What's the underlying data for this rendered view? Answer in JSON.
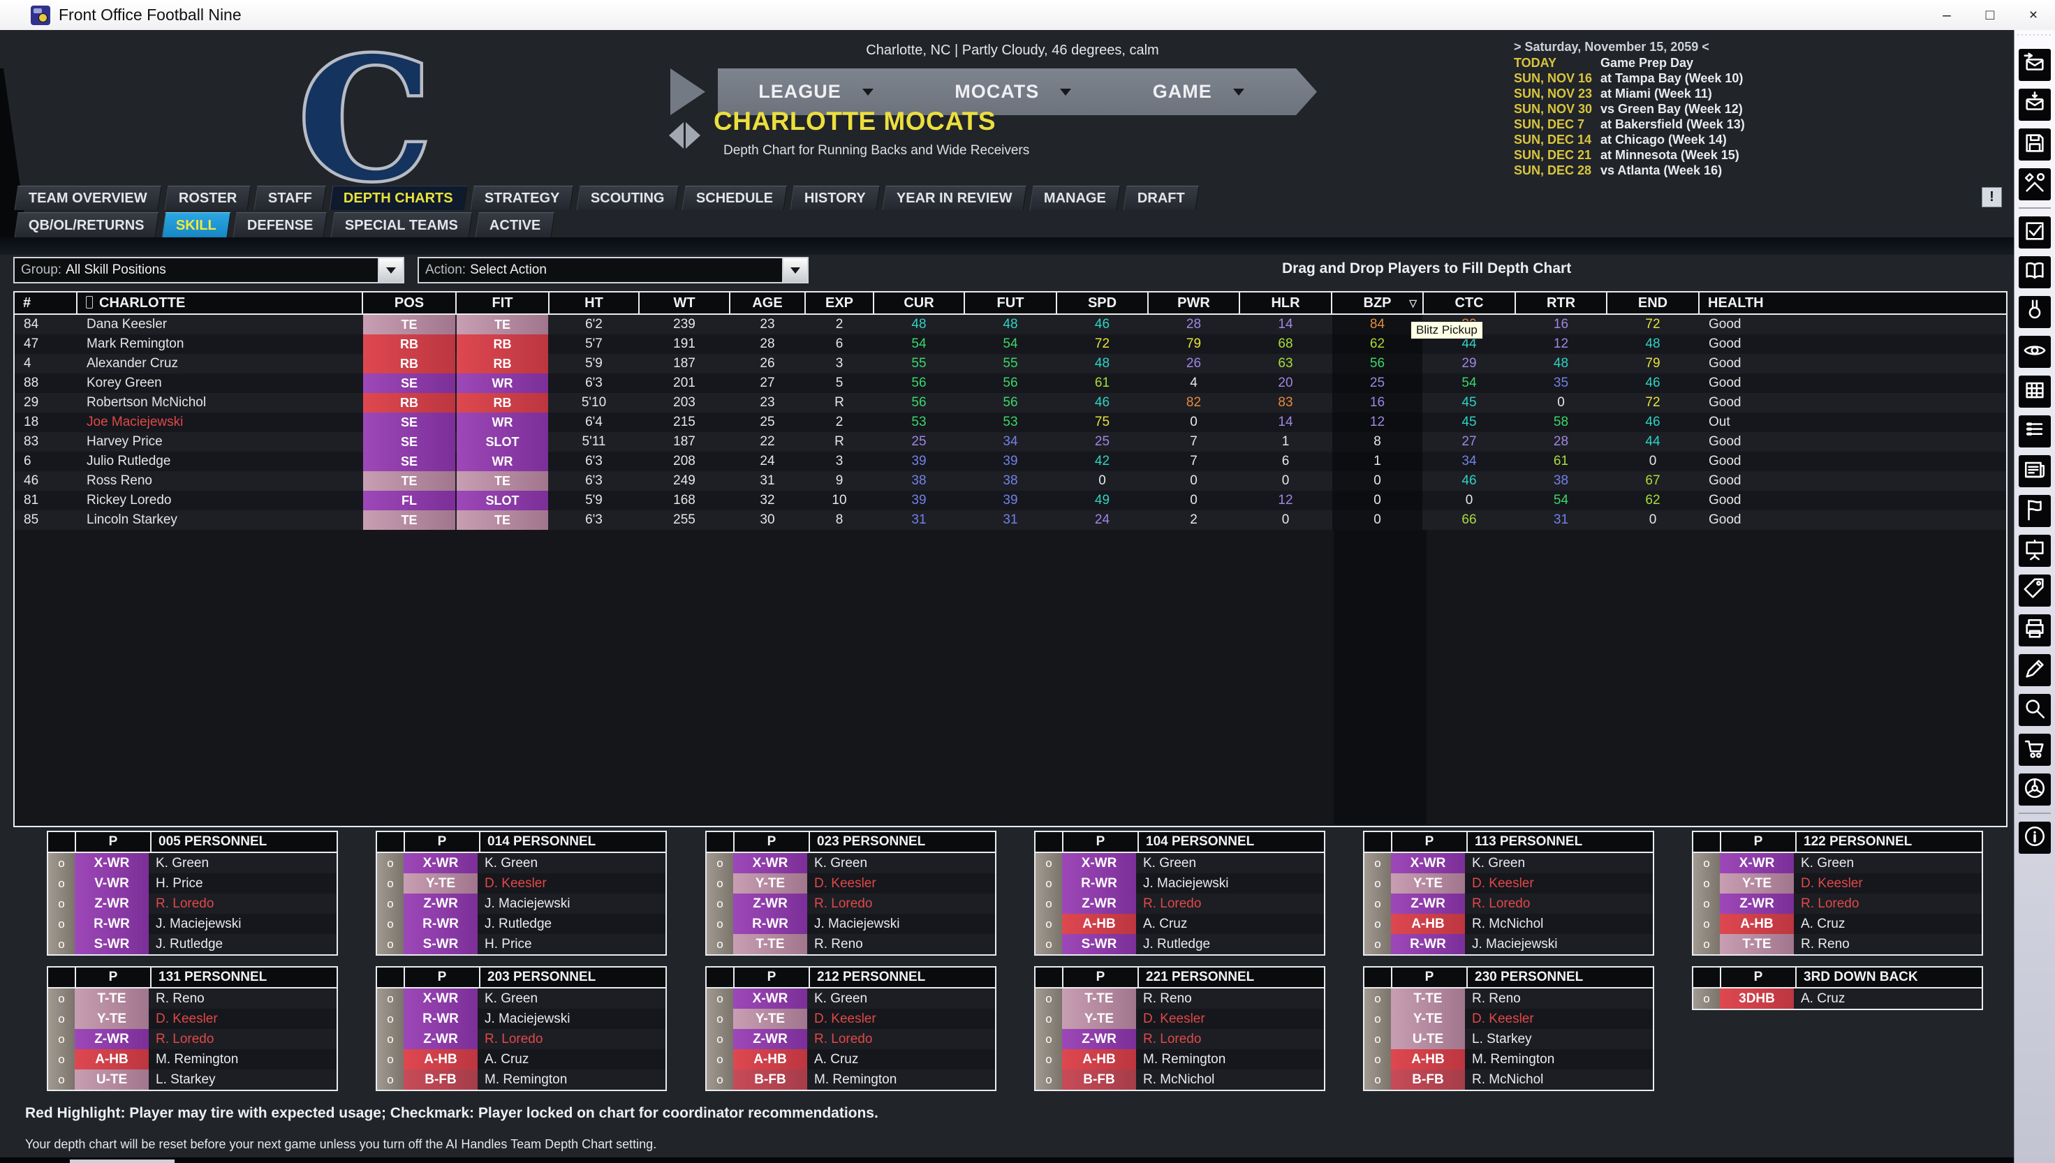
{
  "window": {
    "title": "Front Office Football Nine",
    "minimize": "–",
    "maximize": "□",
    "close": "×"
  },
  "header": {
    "logo_letter": "C",
    "weather": "Charlotte, NC | Partly Cloudy, 46 degrees, calm",
    "nav": [
      "LEAGUE",
      "MOCATS",
      "GAME"
    ],
    "team_name": "CHARLOTTE MOCATS",
    "subtitle": "Depth Chart for Running Backs and Wide Receivers",
    "schedule": {
      "date_header": "> Saturday, November 15, 2059 <",
      "rows": [
        {
          "label": "TODAY",
          "value": "Game Prep Day"
        },
        {
          "label": "SUN, NOV 16",
          "value": "at Tampa Bay (Week 10)"
        },
        {
          "label": "SUN, NOV 23",
          "value": "at Miami (Week 11)"
        },
        {
          "label": "SUN, NOV 30",
          "value": "vs Green Bay (Week 12)"
        },
        {
          "label": "SUN, DEC 7",
          "value": "at Bakersfield (Week 13)"
        },
        {
          "label": "SUN, DEC 14",
          "value": "at Chicago (Week 14)"
        },
        {
          "label": "SUN, DEC 21",
          "value": "at Minnesota (Week 15)"
        },
        {
          "label": "SUN, DEC 28",
          "value": "vs Atlanta (Week 16)"
        }
      ]
    }
  },
  "tabs": {
    "primary": [
      {
        "label": "TEAM OVERVIEW",
        "active": false
      },
      {
        "label": "ROSTER",
        "active": false
      },
      {
        "label": "STAFF",
        "active": false
      },
      {
        "label": "DEPTH CHARTS",
        "active": true
      },
      {
        "label": "STRATEGY",
        "active": false
      },
      {
        "label": "SCOUTING",
        "active": false
      },
      {
        "label": "SCHEDULE",
        "active": false
      },
      {
        "label": "HISTORY",
        "active": false
      },
      {
        "label": "YEAR IN REVIEW",
        "active": false
      },
      {
        "label": "MANAGE",
        "active": false
      },
      {
        "label": "DRAFT",
        "active": false
      }
    ],
    "secondary": [
      {
        "label": "QB/OL/RETURNS",
        "active": false
      },
      {
        "label": "SKILL",
        "active": true
      },
      {
        "label": "DEFENSE",
        "active": false
      },
      {
        "label": "SPECIAL TEAMS",
        "active": false
      },
      {
        "label": "ACTIVE",
        "active": false
      }
    ],
    "alert_button": "!"
  },
  "controls": {
    "group_label": "Group:",
    "group_value": "All Skill Positions",
    "action_label": "Action:",
    "action_value": "Select Action",
    "hint": "Drag and Drop Players to Fill Depth Chart"
  },
  "roster": {
    "columns": [
      "#",
      "CHARLOTTE",
      "POS",
      "FIT",
      "HT",
      "WT",
      "AGE",
      "EXP",
      "CUR",
      "FUT",
      "SPD",
      "PWR",
      "HLR",
      "BZP",
      "CTC",
      "RTR",
      "END",
      "HEALTH"
    ],
    "sort_column": "BZP",
    "sort_icon": "▽",
    "tooltip": "Blitz Pickup",
    "players": [
      {
        "num": "84",
        "name": "Dana Keesler",
        "name_red": false,
        "pos": "TE",
        "fit": "TE",
        "ht": "6'2",
        "wt": "239",
        "age": "23",
        "exp": "2",
        "cur": 48,
        "fut": 48,
        "spd": 46,
        "pwr": 28,
        "hlr": 14,
        "bzp": 84,
        "ctc": 80,
        "rtr": 16,
        "end": 72,
        "health": "Good"
      },
      {
        "num": "47",
        "name": "Mark Remington",
        "name_red": false,
        "pos": "RB",
        "fit": "RB",
        "ht": "5'7",
        "wt": "191",
        "age": "28",
        "exp": "6",
        "cur": 54,
        "fut": 54,
        "spd": 72,
        "pwr": 79,
        "hlr": 68,
        "bzp": 62,
        "ctc": 44,
        "rtr": 12,
        "end": 48,
        "health": "Good"
      },
      {
        "num": "4",
        "name": "Alexander Cruz",
        "name_red": false,
        "pos": "RB",
        "fit": "RB",
        "ht": "5'9",
        "wt": "187",
        "age": "26",
        "exp": "3",
        "cur": 55,
        "fut": 55,
        "spd": 48,
        "pwr": 26,
        "hlr": 63,
        "bzp": 56,
        "ctc": 29,
        "rtr": 48,
        "end": 79,
        "health": "Good"
      },
      {
        "num": "88",
        "name": "Korey Green",
        "name_red": false,
        "pos": "SE",
        "fit": "WR",
        "ht": "6'3",
        "wt": "201",
        "age": "27",
        "exp": "5",
        "cur": 56,
        "fut": 56,
        "spd": 61,
        "pwr": 4,
        "hlr": 20,
        "bzp": 25,
        "ctc": 54,
        "rtr": 35,
        "end": 46,
        "health": "Good"
      },
      {
        "num": "29",
        "name": "Robertson McNichol",
        "name_red": false,
        "pos": "RB",
        "fit": "RB",
        "ht": "5'10",
        "wt": "203",
        "age": "23",
        "exp": "R",
        "cur": 56,
        "fut": 56,
        "spd": 46,
        "pwr": 82,
        "hlr": 83,
        "bzp": 16,
        "ctc": 45,
        "rtr": 0,
        "end": 72,
        "health": "Good"
      },
      {
        "num": "18",
        "name": "Joe Maciejewski",
        "name_red": true,
        "pos": "SE",
        "fit": "WR",
        "ht": "6'4",
        "wt": "215",
        "age": "25",
        "exp": "2",
        "cur": 53,
        "fut": 53,
        "spd": 75,
        "pwr": 0,
        "hlr": 14,
        "bzp": 12,
        "ctc": 45,
        "rtr": 58,
        "end": 46,
        "health": "Out"
      },
      {
        "num": "83",
        "name": "Harvey Price",
        "name_red": false,
        "pos": "SE",
        "fit": "SLOT",
        "ht": "5'11",
        "wt": "187",
        "age": "22",
        "exp": "R",
        "cur": 25,
        "fut": 34,
        "spd": 25,
        "pwr": 7,
        "hlr": 1,
        "bzp": 8,
        "ctc": 27,
        "rtr": 28,
        "end": 44,
        "health": "Good"
      },
      {
        "num": "6",
        "name": "Julio Rutledge",
        "name_red": false,
        "pos": "SE",
        "fit": "WR",
        "ht": "6'3",
        "wt": "208",
        "age": "24",
        "exp": "3",
        "cur": 39,
        "fut": 39,
        "spd": 42,
        "pwr": 7,
        "hlr": 6,
        "bzp": 1,
        "ctc": 34,
        "rtr": 61,
        "end": 0,
        "health": "Good"
      },
      {
        "num": "46",
        "name": "Ross Reno",
        "name_red": false,
        "pos": "TE",
        "fit": "TE",
        "ht": "6'3",
        "wt": "249",
        "age": "31",
        "exp": "9",
        "cur": 38,
        "fut": 38,
        "spd": 0,
        "pwr": 0,
        "hlr": 0,
        "bzp": 0,
        "ctc": 46,
        "rtr": 38,
        "end": 67,
        "health": "Good"
      },
      {
        "num": "81",
        "name": "Rickey Loredo",
        "name_red": false,
        "pos": "FL",
        "fit": "SLOT",
        "ht": "5'9",
        "wt": "168",
        "age": "32",
        "exp": "10",
        "cur": 39,
        "fut": 39,
        "spd": 49,
        "pwr": 0,
        "hlr": 12,
        "bzp": 0,
        "ctc": 0,
        "rtr": 54,
        "end": 62,
        "health": "Good"
      },
      {
        "num": "85",
        "name": "Lincoln Starkey",
        "name_red": false,
        "pos": "TE",
        "fit": "TE",
        "ht": "6'3",
        "wt": "255",
        "age": "30",
        "exp": "8",
        "cur": 31,
        "fut": 31,
        "spd": 24,
        "pwr": 2,
        "hlr": 0,
        "bzp": 0,
        "ctc": 66,
        "rtr": 31,
        "end": 0,
        "health": "Good"
      }
    ]
  },
  "personnel": {
    "col_p": "P",
    "lock_glyph": "o",
    "rows": [
      [
        {
          "title": "005 PERSONNEL",
          "slots": [
            {
              "pos": "X-WR",
              "player": "K. Green",
              "red": false
            },
            {
              "pos": "V-WR",
              "player": "H. Price",
              "red": false
            },
            {
              "pos": "Z-WR",
              "player": "R. Loredo",
              "red": true
            },
            {
              "pos": "R-WR",
              "player": "J. Maciejewski",
              "red": false
            },
            {
              "pos": "S-WR",
              "player": "J. Rutledge",
              "red": false
            }
          ]
        },
        {
          "title": "014 PERSONNEL",
          "slots": [
            {
              "pos": "X-WR",
              "player": "K. Green",
              "red": false
            },
            {
              "pos": "Y-TE",
              "player": "D. Keesler",
              "red": true
            },
            {
              "pos": "Z-WR",
              "player": "J. Maciejewski",
              "red": false
            },
            {
              "pos": "R-WR",
              "player": "J. Rutledge",
              "red": false
            },
            {
              "pos": "S-WR",
              "player": "H. Price",
              "red": false
            }
          ]
        },
        {
          "title": "023 PERSONNEL",
          "slots": [
            {
              "pos": "X-WR",
              "player": "K. Green",
              "red": false
            },
            {
              "pos": "Y-TE",
              "player": "D. Keesler",
              "red": true
            },
            {
              "pos": "Z-WR",
              "player": "R. Loredo",
              "red": true
            },
            {
              "pos": "R-WR",
              "player": "J. Maciejewski",
              "red": false
            },
            {
              "pos": "T-TE",
              "player": "R. Reno",
              "red": false
            }
          ]
        },
        {
          "title": "104 PERSONNEL",
          "slots": [
            {
              "pos": "X-WR",
              "player": "K. Green",
              "red": false
            },
            {
              "pos": "R-WR",
              "player": "J. Maciejewski",
              "red": false
            },
            {
              "pos": "Z-WR",
              "player": "R. Loredo",
              "red": true
            },
            {
              "pos": "A-HB",
              "player": "A. Cruz",
              "red": false
            },
            {
              "pos": "S-WR",
              "player": "J. Rutledge",
              "red": false
            }
          ]
        },
        {
          "title": "113 PERSONNEL",
          "slots": [
            {
              "pos": "X-WR",
              "player": "K. Green",
              "red": false
            },
            {
              "pos": "Y-TE",
              "player": "D. Keesler",
              "red": true
            },
            {
              "pos": "Z-WR",
              "player": "R. Loredo",
              "red": true
            },
            {
              "pos": "A-HB",
              "player": "R. McNichol",
              "red": false
            },
            {
              "pos": "R-WR",
              "player": "J. Maciejewski",
              "red": false
            }
          ]
        },
        {
          "title": "122 PERSONNEL",
          "slots": [
            {
              "pos": "X-WR",
              "player": "K. Green",
              "red": false
            },
            {
              "pos": "Y-TE",
              "player": "D. Keesler",
              "red": true
            },
            {
              "pos": "Z-WR",
              "player": "R. Loredo",
              "red": true
            },
            {
              "pos": "A-HB",
              "player": "A. Cruz",
              "red": false
            },
            {
              "pos": "T-TE",
              "player": "R. Reno",
              "red": false
            }
          ]
        }
      ],
      [
        {
          "title": "131 PERSONNEL",
          "slots": [
            {
              "pos": "T-TE",
              "player": "R. Reno",
              "red": false
            },
            {
              "pos": "Y-TE",
              "player": "D. Keesler",
              "red": true
            },
            {
              "pos": "Z-WR",
              "player": "R. Loredo",
              "red": true
            },
            {
              "pos": "A-HB",
              "player": "M. Remington",
              "red": false
            },
            {
              "pos": "U-TE",
              "player": "L. Starkey",
              "red": false
            }
          ]
        },
        {
          "title": "203 PERSONNEL",
          "slots": [
            {
              "pos": "X-WR",
              "player": "K. Green",
              "red": false
            },
            {
              "pos": "R-WR",
              "player": "J. Maciejewski",
              "red": false
            },
            {
              "pos": "Z-WR",
              "player": "R. Loredo",
              "red": true
            },
            {
              "pos": "A-HB",
              "player": "A. Cruz",
              "red": false
            },
            {
              "pos": "B-FB",
              "player": "M. Remington",
              "red": false
            }
          ]
        },
        {
          "title": "212 PERSONNEL",
          "slots": [
            {
              "pos": "X-WR",
              "player": "K. Green",
              "red": false
            },
            {
              "pos": "Y-TE",
              "player": "D. Keesler",
              "red": true
            },
            {
              "pos": "Z-WR",
              "player": "R. Loredo",
              "red": true
            },
            {
              "pos": "A-HB",
              "player": "A. Cruz",
              "red": false
            },
            {
              "pos": "B-FB",
              "player": "M. Remington",
              "red": false
            }
          ]
        },
        {
          "title": "221 PERSONNEL",
          "slots": [
            {
              "pos": "T-TE",
              "player": "R. Reno",
              "red": false
            },
            {
              "pos": "Y-TE",
              "player": "D. Keesler",
              "red": true
            },
            {
              "pos": "Z-WR",
              "player": "R. Loredo",
              "red": true
            },
            {
              "pos": "A-HB",
              "player": "M. Remington",
              "red": false
            },
            {
              "pos": "B-FB",
              "player": "R. McNichol",
              "red": false
            }
          ]
        },
        {
          "title": "230 PERSONNEL",
          "slots": [
            {
              "pos": "T-TE",
              "player": "R. Reno",
              "red": false
            },
            {
              "pos": "Y-TE",
              "player": "D. Keesler",
              "red": true
            },
            {
              "pos": "U-TE",
              "player": "L. Starkey",
              "red": false
            },
            {
              "pos": "A-HB",
              "player": "M. Remington",
              "red": false
            },
            {
              "pos": "B-FB",
              "player": "R. McNichol",
              "red": false
            }
          ]
        },
        {
          "title": "3RD DOWN BACK",
          "slots": [
            {
              "pos": "3DHB",
              "player": "A. Cruz",
              "red": false
            }
          ]
        }
      ]
    ]
  },
  "footer": {
    "legend": "Red Highlight: Player may tire with expected usage; Checkmark: Player locked on chart for coordinator recommendations.",
    "note": "Your depth chart will be reset before your next game unless you turn off the AI Handles Team Depth Chart setting."
  },
  "sidebar": {
    "icons": [
      {
        "name": "mail-out"
      },
      {
        "name": "mail-in"
      },
      {
        "name": "save"
      },
      {
        "name": "tools"
      },
      {
        "name": "checklist",
        "divider_before": true
      },
      {
        "name": "book"
      },
      {
        "name": "medal"
      },
      {
        "name": "eye"
      },
      {
        "name": "grid"
      },
      {
        "name": "list"
      },
      {
        "name": "newspaper"
      },
      {
        "name": "flag"
      },
      {
        "name": "easel"
      },
      {
        "name": "tag"
      },
      {
        "name": "printer"
      },
      {
        "name": "pencil"
      },
      {
        "name": "magnifier"
      },
      {
        "name": "cart"
      },
      {
        "name": "wheel"
      },
      {
        "name": "info",
        "divider_before": true
      }
    ]
  },
  "colors": {
    "accent_yellow": "#ecdf3d",
    "active_tab_blue": "#1f9ad8",
    "red_text": "#e04848",
    "rating": {
      "low": "#e8e8e8",
      "purple": "#a186e2",
      "blue": "#7282e6",
      "cyan": "#2ed3c3",
      "green": "#3bd66a",
      "yellow_green": "#a9dd3a",
      "yellow": "#e6e23a",
      "orange": "#e78a3a"
    },
    "pos": {
      "wr": "#8d3caa",
      "te": "#b58aa0",
      "hb": "#d6404a",
      "fb": "#bb4653"
    }
  }
}
